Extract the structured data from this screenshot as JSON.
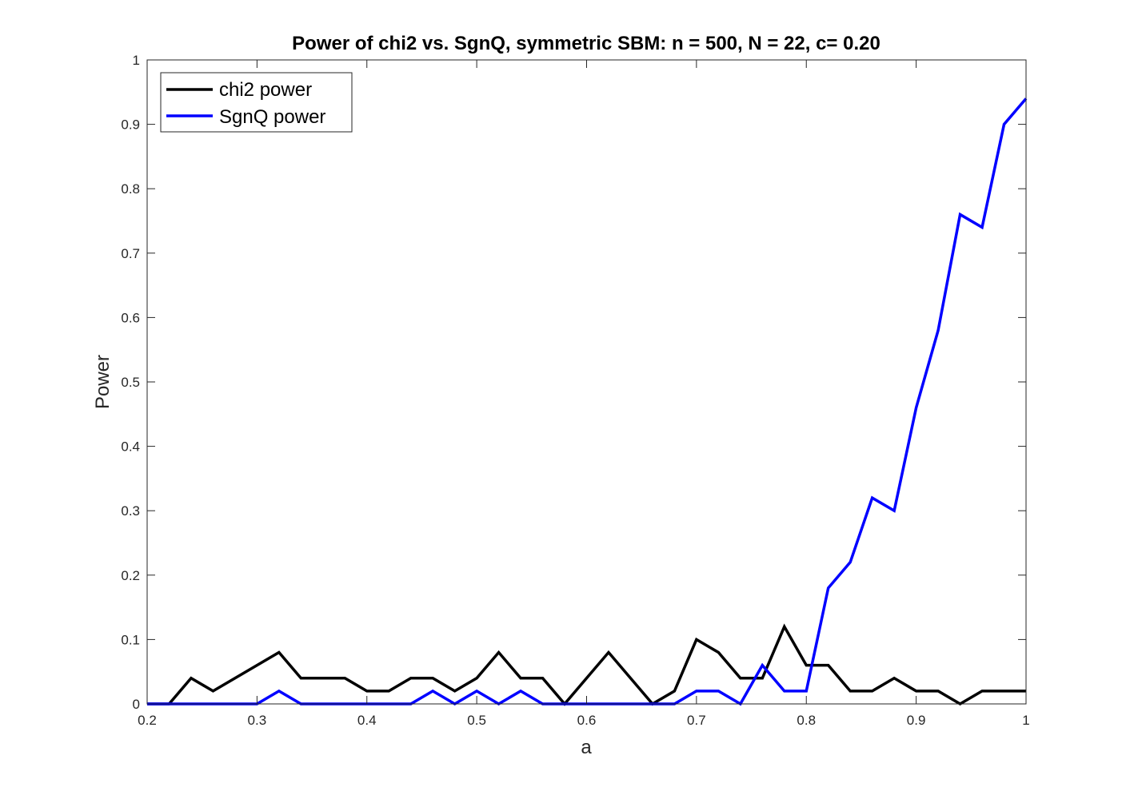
{
  "chart_data": {
    "type": "line",
    "title": "Power of chi2 vs. SgnQ, symmetric SBM: n = 500, N = 22, c= 0.20",
    "xlabel": "a",
    "ylabel": "Power",
    "xlim": [
      0.2,
      1
    ],
    "ylim": [
      0,
      1
    ],
    "xticks": [
      0.2,
      0.3,
      0.4,
      0.5,
      0.6,
      0.7,
      0.8,
      0.9,
      1
    ],
    "xtick_labels": [
      "0.2",
      "0.3",
      "0.4",
      "0.5",
      "0.6",
      "0.7",
      "0.8",
      "0.9",
      "1"
    ],
    "yticks": [
      0,
      0.1,
      0.2,
      0.3,
      0.4,
      0.5,
      0.6,
      0.7,
      0.8,
      0.9,
      1
    ],
    "ytick_labels": [
      "0",
      "0.1",
      "0.2",
      "0.3",
      "0.4",
      "0.5",
      "0.6",
      "0.7",
      "0.8",
      "0.9",
      "1"
    ],
    "grid": false,
    "legend_position": "top-left",
    "x": [
      0.2,
      0.22,
      0.24,
      0.26,
      0.28,
      0.3,
      0.32,
      0.34,
      0.36,
      0.38,
      0.4,
      0.42,
      0.44,
      0.46,
      0.48,
      0.5,
      0.52,
      0.54,
      0.56,
      0.58,
      0.6,
      0.62,
      0.64,
      0.66,
      0.68,
      0.7,
      0.72,
      0.74,
      0.76,
      0.78,
      0.8,
      0.82,
      0.84,
      0.86,
      0.88,
      0.9,
      0.92,
      0.94,
      0.96,
      0.98,
      1.0
    ],
    "series": [
      {
        "name": "chi2 power",
        "color": "#000000",
        "values": [
          0,
          0,
          0.04,
          0.02,
          0.04,
          0.06,
          0.08,
          0.04,
          0.04,
          0.04,
          0.02,
          0.02,
          0.04,
          0.04,
          0.02,
          0.04,
          0.08,
          0.04,
          0.04,
          0,
          0.04,
          0.08,
          0.04,
          0,
          0.02,
          0.1,
          0.08,
          0.04,
          0.04,
          0.12,
          0.06,
          0.06,
          0.02,
          0.02,
          0.04,
          0.02,
          0.02,
          0,
          0.02,
          0.02,
          0.02
        ]
      },
      {
        "name": "SgnQ power",
        "color": "#0000ff",
        "values": [
          0,
          0,
          0,
          0,
          0,
          0,
          0.02,
          0,
          0,
          0,
          0,
          0,
          0,
          0.02,
          0,
          0.02,
          0,
          0.02,
          0,
          0,
          0,
          0,
          0,
          0,
          0,
          0.02,
          0.02,
          0,
          0.06,
          0.02,
          0.02,
          0.18,
          0.22,
          0.32,
          0.3,
          0.46,
          0.58,
          0.76,
          0.74,
          0.9,
          0.94
        ]
      }
    ]
  }
}
